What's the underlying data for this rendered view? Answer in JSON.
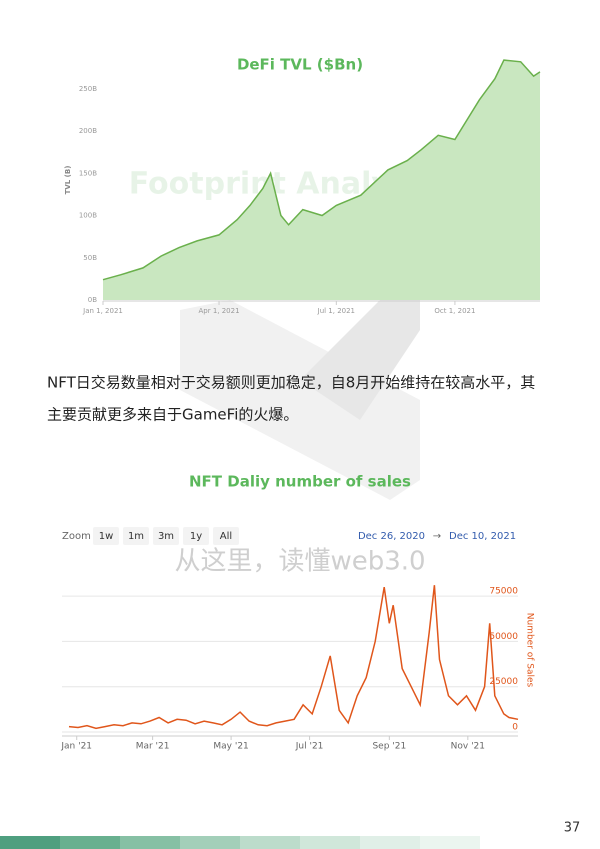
{
  "chart_data": [
    {
      "type": "area",
      "title": "DeFi TVL ($Bn)",
      "watermark": "Footprint Analytics",
      "y_label": "TVL (B)",
      "color": "#6ab04c",
      "fill": "#c9e7c0",
      "grid": false,
      "y_axis_side": "left",
      "xlim": [
        "2021-01-01",
        "2021-12-06"
      ],
      "ylim": [
        0,
        290
      ],
      "xticks": [
        {
          "value": "2021-01-01",
          "label": "Jan 1, 2021"
        },
        {
          "value": "2021-04-01",
          "label": "Apr 1, 2021"
        },
        {
          "value": "2021-07-01",
          "label": "Jul 1, 2021"
        },
        {
          "value": "2021-10-01",
          "label": "Oct 1, 2021"
        }
      ],
      "yticks": [
        {
          "value": 0,
          "label": "0B"
        },
        {
          "value": 50,
          "label": "50B"
        },
        {
          "value": 100,
          "label": "100B"
        },
        {
          "value": 150,
          "label": "150B"
        },
        {
          "value": 200,
          "label": "200B"
        },
        {
          "value": 250,
          "label": "250B"
        }
      ],
      "x": [
        "2021-01-01",
        "2021-01-15",
        "2021-02-01",
        "2021-02-15",
        "2021-03-01",
        "2021-03-15",
        "2021-04-01",
        "2021-04-15",
        "2021-04-25",
        "2021-05-05",
        "2021-05-11",
        "2021-05-19",
        "2021-05-25",
        "2021-06-05",
        "2021-06-20",
        "2021-07-01",
        "2021-07-20",
        "2021-08-10",
        "2021-08-25",
        "2021-09-05",
        "2021-09-18",
        "2021-10-01",
        "2021-10-20",
        "2021-11-01",
        "2021-11-08",
        "2021-11-21",
        "2021-12-01",
        "2021-12-06"
      ],
      "values": [
        24,
        30,
        38,
        52,
        62,
        70,
        77,
        95,
        112,
        132,
        150,
        100,
        89,
        107,
        100,
        112,
        124,
        154,
        165,
        178,
        195,
        190,
        237,
        262,
        284,
        282,
        265,
        270
      ]
    },
    {
      "type": "line",
      "title": "NFT Daliy number of sales",
      "watermark": "从这里，读懂web3.0",
      "y_label": "Number of Sales",
      "color": "#e0561b",
      "grid": true,
      "y_axis_side": "right",
      "range_selector": {
        "label": "Zoom",
        "buttons": [
          "1w",
          "1m",
          "3m",
          "1y",
          "All"
        ]
      },
      "date_range": {
        "from": "Dec 26, 2020",
        "separator": "→",
        "to": "Dec 10, 2021"
      },
      "xlim": [
        "2020-12-26",
        "2021-12-10"
      ],
      "ylim": [
        0,
        85000
      ],
      "xticks": [
        {
          "value": "2021-01-01",
          "label": "Jan '21"
        },
        {
          "value": "2021-03-01",
          "label": "Mar '21"
        },
        {
          "value": "2021-05-01",
          "label": "May '21"
        },
        {
          "value": "2021-07-01",
          "label": "Jul '21"
        },
        {
          "value": "2021-09-01",
          "label": "Sep '21"
        },
        {
          "value": "2021-11-01",
          "label": "Nov '21"
        }
      ],
      "yticks": [
        0,
        25000,
        50000,
        75000
      ],
      "x": [
        "2020-12-26",
        "2021-01-02",
        "2021-01-09",
        "2021-01-16",
        "2021-01-23",
        "2021-01-30",
        "2021-02-06",
        "2021-02-13",
        "2021-02-20",
        "2021-02-27",
        "2021-03-06",
        "2021-03-13",
        "2021-03-20",
        "2021-03-27",
        "2021-04-03",
        "2021-04-10",
        "2021-04-17",
        "2021-04-24",
        "2021-05-01",
        "2021-05-08",
        "2021-05-15",
        "2021-05-22",
        "2021-05-29",
        "2021-06-05",
        "2021-06-12",
        "2021-06-19",
        "2021-06-26",
        "2021-07-03",
        "2021-07-10",
        "2021-07-17",
        "2021-07-24",
        "2021-07-31",
        "2021-08-07",
        "2021-08-14",
        "2021-08-21",
        "2021-08-28",
        "2021-09-01",
        "2021-09-04",
        "2021-09-11",
        "2021-09-18",
        "2021-09-25",
        "2021-10-02",
        "2021-10-06",
        "2021-10-10",
        "2021-10-17",
        "2021-10-24",
        "2021-10-31",
        "2021-11-07",
        "2021-11-14",
        "2021-11-18",
        "2021-11-22",
        "2021-11-29",
        "2021-12-03",
        "2021-12-10"
      ],
      "values": [
        3000,
        2500,
        3500,
        2000,
        3000,
        4000,
        3500,
        5000,
        4500,
        6000,
        8000,
        5000,
        7000,
        6500,
        4500,
        6000,
        5000,
        4000,
        7000,
        11000,
        6000,
        4000,
        3500,
        5000,
        6000,
        7000,
        15000,
        10000,
        25000,
        42000,
        12000,
        5000,
        20000,
        30000,
        50000,
        80000,
        60000,
        70000,
        35000,
        25000,
        15000,
        55000,
        81000,
        40000,
        20000,
        15000,
        20000,
        12000,
        25000,
        60000,
        20000,
        10000,
        8000,
        7000
      ]
    }
  ],
  "paragraph": [
    "NFT日交易数量相对于交易额则更加稳定，自8月开始维持在较高水平，其",
    "主要贡献更多来自于GameFi的火爆。"
  ],
  "page_number": "37"
}
